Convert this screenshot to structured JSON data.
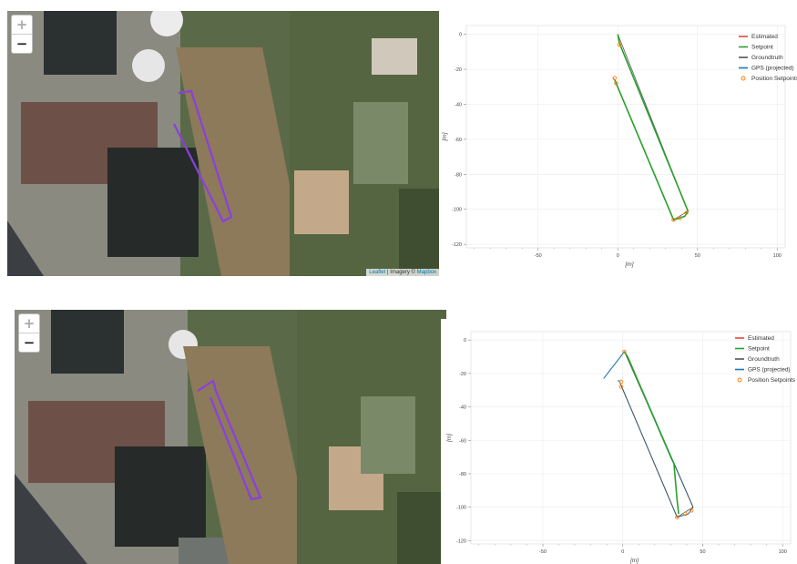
{
  "map": {
    "zoom_in": "+",
    "zoom_out": "−",
    "attribution_prefix": "Leaflet",
    "attribution_middle": " | Imagery © ",
    "attribution_link": "Mapbox",
    "route_color": "#8b3fe0"
  },
  "plots": {
    "x_label": "[m]",
    "y_label": "[m]",
    "x_ticks": [
      "-50",
      "0",
      "50",
      "100"
    ],
    "y_ticks": [
      "0",
      "-20",
      "-40",
      "-60",
      "-80",
      "-100",
      "-120"
    ],
    "legend": [
      {
        "label": "Estimated",
        "color": "#e8463c",
        "icon": "line"
      },
      {
        "label": "Setpoint",
        "color": "#2ca02c",
        "icon": "line"
      },
      {
        "label": "Groundtruth",
        "color": "#555555",
        "icon": "line"
      },
      {
        "label": "GPS (projected)",
        "color": "#1f77b4",
        "icon": "line"
      },
      {
        "label": "Position Setpoints",
        "color": "#ff7f0e",
        "icon": "circle"
      }
    ]
  },
  "chart_data": [
    {
      "type": "line",
      "xlabel": "[m]",
      "ylabel": "[m]",
      "xlim": [
        -95,
        105
      ],
      "ylim": [
        -122,
        5
      ],
      "grid": true,
      "legend_position": "top-right",
      "series": [
        {
          "name": "GPS (projected)",
          "points": [
            [
              0,
              0
            ],
            [
              1,
              -5
            ],
            [
              44,
              -101
            ],
            [
              42,
              -104
            ],
            [
              35,
              -106
            ],
            [
              -2,
              -26
            ],
            [
              -3,
              -25
            ]
          ]
        },
        {
          "name": "Setpoint",
          "points": [
            [
              0,
              0
            ],
            [
              1,
              -5
            ],
            [
              44,
              -101
            ],
            [
              42,
              -104
            ],
            [
              35,
              -106
            ],
            [
              -2,
              -26
            ]
          ]
        },
        {
          "name": "Groundtruth",
          "points": [
            [
              0,
              0
            ],
            [
              44,
              -101
            ],
            [
              35,
              -106
            ],
            [
              -2,
              -26
            ]
          ]
        }
      ],
      "position_setpoints": [
        [
          1,
          -6
        ],
        [
          -2,
          -25
        ],
        [
          -1,
          -28
        ],
        [
          35,
          -106
        ],
        [
          39,
          -105
        ],
        [
          43,
          -102
        ]
      ]
    },
    {
      "type": "line",
      "xlabel": "[m]",
      "ylabel": "[m]",
      "xlim": [
        -95,
        105
      ],
      "ylim": [
        -122,
        5
      ],
      "grid": true,
      "legend_position": "top-right",
      "series": [
        {
          "name": "GPS (projected)",
          "points": [
            [
              -12,
              -23
            ],
            [
              1,
              -7
            ],
            [
              4,
              -12
            ],
            [
              44,
              -100
            ],
            [
              41,
              -104
            ],
            [
              34,
              -106
            ],
            [
              -2,
              -25
            ],
            [
              -3,
              -24
            ]
          ]
        },
        {
          "name": "Setpoint",
          "points": [
            [
              1,
              -7
            ],
            [
              3,
              -10
            ],
            [
              30,
              -70
            ],
            [
              32,
              -74
            ],
            [
              34,
              -96
            ],
            [
              35,
              -104
            ]
          ]
        },
        {
          "name": "Groundtruth",
          "points": [
            [
              1,
              -7
            ],
            [
              44,
              -100
            ],
            [
              34,
              -106
            ],
            [
              -2,
              -25
            ]
          ]
        }
      ],
      "position_setpoints": [
        [
          1,
          -7
        ],
        [
          -1,
          -25
        ],
        [
          -1,
          -28
        ],
        [
          34,
          -106
        ],
        [
          39,
          -104
        ],
        [
          43,
          -102
        ]
      ]
    }
  ]
}
